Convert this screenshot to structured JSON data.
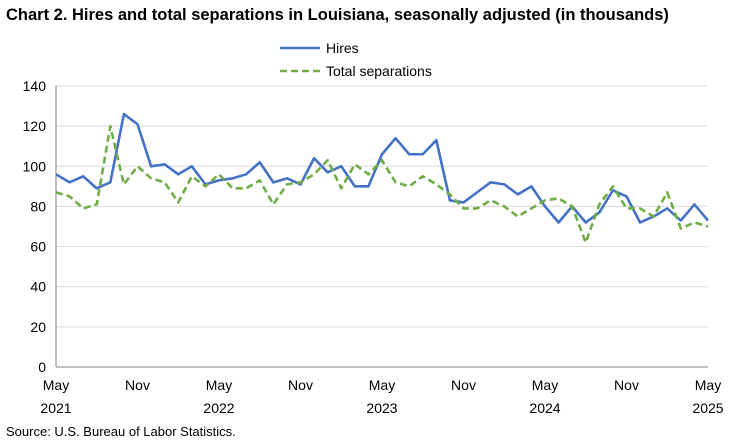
{
  "chart_data": {
    "type": "line",
    "title": "Chart 2. Hires and total separations in Louisiana, seasonally adjusted (in thousands)",
    "source": "Source: U.S. Bureau of Labor Statistics.",
    "ylim": [
      0,
      140
    ],
    "yticks": [
      0,
      20,
      40,
      60,
      80,
      100,
      120,
      140
    ],
    "grid": "horizontal",
    "legend_position": "top-center",
    "x": [
      "2021-05",
      "2021-06",
      "2021-07",
      "2021-08",
      "2021-09",
      "2021-10",
      "2021-11",
      "2021-12",
      "2022-01",
      "2022-02",
      "2022-03",
      "2022-04",
      "2022-05",
      "2022-06",
      "2022-07",
      "2022-08",
      "2022-09",
      "2022-10",
      "2022-11",
      "2022-12",
      "2023-01",
      "2023-02",
      "2023-03",
      "2023-04",
      "2023-05",
      "2023-06",
      "2023-07",
      "2023-08",
      "2023-09",
      "2023-10",
      "2023-11",
      "2023-12",
      "2024-01",
      "2024-02",
      "2024-03",
      "2024-04",
      "2024-05",
      "2024-06",
      "2024-07",
      "2024-08",
      "2024-09",
      "2024-10",
      "2024-11",
      "2024-12",
      "2025-01",
      "2025-02",
      "2025-03",
      "2025-04",
      "2025-05"
    ],
    "xtick_labels": [
      {
        "month": "May",
        "year": "2021",
        "index": 0
      },
      {
        "month": "Nov",
        "year": "",
        "index": 6
      },
      {
        "month": "May",
        "year": "2022",
        "index": 12
      },
      {
        "month": "Nov",
        "year": "",
        "index": 18
      },
      {
        "month": "May",
        "year": "2023",
        "index": 24
      },
      {
        "month": "Nov",
        "year": "",
        "index": 30
      },
      {
        "month": "May",
        "year": "2024",
        "index": 36
      },
      {
        "month": "Nov",
        "year": "",
        "index": 42
      },
      {
        "month": "May",
        "year": "2025",
        "index": 48
      }
    ],
    "series": [
      {
        "name": "Hires",
        "color": "#4472c4",
        "dash": "solid",
        "values": [
          96,
          92,
          95,
          89,
          92,
          126,
          121,
          100,
          101,
          96,
          100,
          91,
          93,
          94,
          96,
          102,
          92,
          94,
          91,
          104,
          97,
          100,
          90,
          90,
          106,
          114,
          106,
          106,
          113,
          83,
          82,
          87,
          92,
          91,
          86,
          90,
          80,
          72,
          80,
          72,
          77,
          88,
          85,
          72,
          75,
          79,
          73,
          81,
          73
        ]
      },
      {
        "name": "Total separations",
        "color": "#70ad47",
        "dash": "dashed",
        "values": [
          87,
          85,
          79,
          81,
          120,
          91,
          100,
          94,
          92,
          82,
          95,
          90,
          96,
          89,
          89,
          93,
          81,
          91,
          92,
          96,
          103,
          89,
          101,
          96,
          103,
          92,
          90,
          95,
          91,
          86,
          79,
          79,
          83,
          80,
          75,
          79,
          83,
          84,
          80,
          62,
          81,
          90,
          79,
          79,
          75,
          87,
          69,
          72,
          70
        ]
      }
    ]
  }
}
